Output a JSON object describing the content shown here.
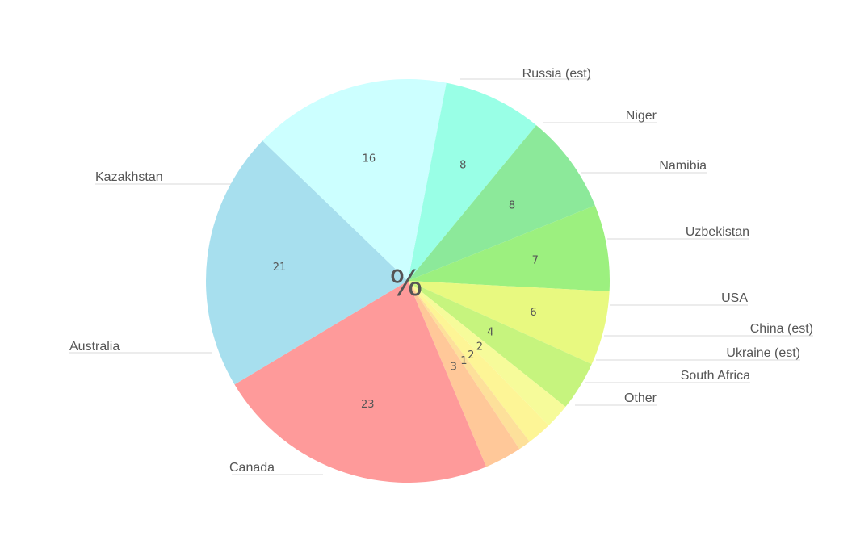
{
  "chart_data": {
    "type": "pie",
    "center_label": "%",
    "slices": [
      {
        "label": "Russia (est)",
        "value": 8,
        "color": "#8ce99a"
      },
      {
        "label": "Niger",
        "value": 7,
        "color": "#9cf07f"
      },
      {
        "label": "Namibia",
        "value": 6,
        "color": "#e8f980"
      },
      {
        "label": "Uzbekistan",
        "value": 4,
        "color": "#c6f47e"
      },
      {
        "label": "USA",
        "value": 2,
        "color": "#f6fb9a"
      },
      {
        "label": "China (est)",
        "value": 2,
        "color": "#fdf596"
      },
      {
        "label": "Ukraine (est)",
        "value": 1,
        "color": "#fde09a"
      },
      {
        "label": "South Africa",
        "value": 3,
        "color": "#ffc899"
      },
      {
        "label": "Other",
        "value": 23,
        "color": "#fe9a9a"
      },
      {
        "label": "Canada",
        "value": 21,
        "color": "#a7dfee"
      },
      {
        "label": "Australia",
        "value": 16,
        "color": "#ccffff"
      },
      {
        "label": "Kazakhstan",
        "value": 8,
        "color": "#99ffe6"
      }
    ],
    "legend": "none"
  }
}
